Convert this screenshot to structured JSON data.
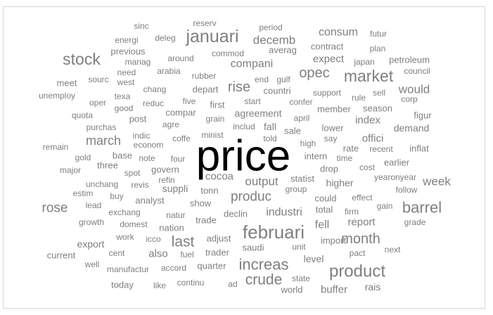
{
  "chart_data": {
    "type": "wordcloud",
    "colors": {
      "dominant": "#000000",
      "default": "#7f7f7f"
    },
    "words": [
      {
        "text": "price",
        "freq": 100
      },
      {
        "text": "februari",
        "freq": 26
      },
      {
        "text": "januari",
        "freq": 24
      },
      {
        "text": "product",
        "freq": 24
      },
      {
        "text": "market",
        "freq": 23
      },
      {
        "text": "stock",
        "freq": 23
      },
      {
        "text": "increas",
        "freq": 22
      },
      {
        "text": "barrel",
        "freq": 22
      },
      {
        "text": "last",
        "freq": 21
      },
      {
        "text": "crude",
        "freq": 21
      },
      {
        "text": "rise",
        "freq": 20
      },
      {
        "text": "month",
        "freq": 20
      },
      {
        "text": "opec",
        "freq": 20
      },
      {
        "text": "produc",
        "freq": 19
      },
      {
        "text": "rose",
        "freq": 19
      },
      {
        "text": "march",
        "freq": 18
      },
      {
        "text": "output",
        "freq": 17
      },
      {
        "text": "decemb",
        "freq": 17
      },
      {
        "text": "would",
        "freq": 17
      },
      {
        "text": "week",
        "freq": 17
      },
      {
        "text": "industri",
        "freq": 16
      },
      {
        "text": "compani",
        "freq": 16
      },
      {
        "text": "consum",
        "freq": 16
      },
      {
        "text": "fell",
        "freq": 16
      },
      {
        "text": "report",
        "freq": 15
      },
      {
        "text": "buffer",
        "freq": 15
      },
      {
        "text": "index",
        "freq": 15
      },
      {
        "text": "offici",
        "freq": 15
      },
      {
        "text": "also",
        "freq": 15
      },
      {
        "text": "expect",
        "freq": 15
      },
      {
        "text": "cocoa",
        "freq": 15
      },
      {
        "text": "level",
        "freq": 14
      },
      {
        "text": "rais",
        "freq": 14
      },
      {
        "text": "demand",
        "freq": 14
      },
      {
        "text": "agreement",
        "freq": 14
      },
      {
        "text": "higher",
        "freq": 14
      },
      {
        "text": "export",
        "freq": 14
      },
      {
        "text": "suppli",
        "freq": 14
      },
      {
        "text": "fall",
        "freq": 14
      },
      {
        "text": "analyst",
        "freq": 13
      },
      {
        "text": "lower",
        "freq": 13
      },
      {
        "text": "adjust",
        "freq": 13
      },
      {
        "text": "declin",
        "freq": 13
      },
      {
        "text": "post",
        "freq": 13
      },
      {
        "text": "three",
        "freq": 13
      },
      {
        "text": "rate",
        "freq": 13
      },
      {
        "text": "total",
        "freq": 13
      },
      {
        "text": "trader",
        "freq": 13
      },
      {
        "text": "compar",
        "freq": 13
      },
      {
        "text": "tonn",
        "freq": 13
      },
      {
        "text": "could",
        "freq": 13
      },
      {
        "text": "govern",
        "freq": 13
      },
      {
        "text": "trade",
        "freq": 13
      },
      {
        "text": "countri",
        "freq": 13
      },
      {
        "text": "contract",
        "freq": 13
      },
      {
        "text": "earlier",
        "freq": 13
      },
      {
        "text": "meet",
        "freq": 13
      },
      {
        "text": "current",
        "freq": 13
      },
      {
        "text": "world",
        "freq": 13
      },
      {
        "text": "statist",
        "freq": 13
      },
      {
        "text": "today",
        "freq": 13
      },
      {
        "text": "import",
        "freq": 13
      },
      {
        "text": "quarter",
        "freq": 13
      },
      {
        "text": "member",
        "freq": 13
      },
      {
        "text": "figur",
        "freq": 13
      },
      {
        "text": "first",
        "freq": 13
      },
      {
        "text": "averag",
        "freq": 13
      },
      {
        "text": "intern",
        "freq": 13
      },
      {
        "text": "saudi",
        "freq": 13
      },
      {
        "text": "petroleum",
        "freq": 13
      },
      {
        "text": "drop",
        "freq": 13
      },
      {
        "text": "nation",
        "freq": 13
      },
      {
        "text": "sale",
        "freq": 13
      },
      {
        "text": "show",
        "freq": 13
      },
      {
        "text": "previous",
        "freq": 13
      },
      {
        "text": "base",
        "freq": 13
      },
      {
        "text": "inflat",
        "freq": 13
      },
      {
        "text": "depart",
        "freq": 13
      },
      {
        "text": "season",
        "freq": 13
      },
      {
        "text": "unit",
        "freq": 12
      },
      {
        "text": "futur",
        "freq": 12
      },
      {
        "text": "rubber",
        "freq": 12
      },
      {
        "text": "april",
        "freq": 12
      },
      {
        "text": "effect",
        "freq": 12
      },
      {
        "text": "pact",
        "freq": 12
      },
      {
        "text": "energi",
        "freq": 12
      },
      {
        "text": "continu",
        "freq": 12
      },
      {
        "text": "cent",
        "freq": 12
      },
      {
        "text": "growth",
        "freq": 12
      },
      {
        "text": "around",
        "freq": 12
      },
      {
        "text": "chang",
        "freq": 12
      },
      {
        "text": "good",
        "freq": 12
      },
      {
        "text": "next",
        "freq": 12
      },
      {
        "text": "sell",
        "freq": 12
      },
      {
        "text": "ad",
        "freq": 12
      },
      {
        "text": "deleg",
        "freq": 12
      },
      {
        "text": "arabia",
        "freq": 12
      },
      {
        "text": "council",
        "freq": 12
      },
      {
        "text": "state",
        "freq": 12
      },
      {
        "text": "need",
        "freq": 12
      },
      {
        "text": "group",
        "freq": 12
      },
      {
        "text": "say",
        "freq": 12
      },
      {
        "text": "grade",
        "freq": 12
      },
      {
        "text": "yearonyear",
        "freq": 12
      },
      {
        "text": "follow",
        "freq": 12
      },
      {
        "text": "purchas",
        "freq": 12
      },
      {
        "text": "texa",
        "freq": 12
      },
      {
        "text": "unemploy",
        "freq": 12
      },
      {
        "text": "quota",
        "freq": 12
      },
      {
        "text": "oper",
        "freq": 12
      },
      {
        "text": "remain",
        "freq": 12
      },
      {
        "text": "major",
        "freq": 12
      },
      {
        "text": "gold",
        "freq": 12
      },
      {
        "text": "estim",
        "freq": 12
      },
      {
        "text": "lead",
        "freq": 12
      },
      {
        "text": "work",
        "freq": 12
      },
      {
        "text": "exchang",
        "freq": 12
      },
      {
        "text": "domest",
        "freq": 12
      },
      {
        "text": "natur",
        "freq": 12
      },
      {
        "text": "manufactur",
        "freq": 12
      },
      {
        "text": "accord",
        "freq": 12
      },
      {
        "text": "like",
        "freq": 12
      },
      {
        "text": "well",
        "freq": 12
      },
      {
        "text": "fuel",
        "freq": 12
      },
      {
        "text": "icco",
        "freq": 12
      },
      {
        "text": "unchang",
        "freq": 12
      },
      {
        "text": "buy",
        "freq": 12
      },
      {
        "text": "revis",
        "freq": 12
      },
      {
        "text": "spot",
        "freq": 12
      },
      {
        "text": "refin",
        "freq": 12
      },
      {
        "text": "four",
        "freq": 12
      },
      {
        "text": "note",
        "freq": 12
      },
      {
        "text": "econom",
        "freq": 12
      },
      {
        "text": "indic",
        "freq": 12
      },
      {
        "text": "coffe",
        "freq": 12
      },
      {
        "text": "minist",
        "freq": 12
      },
      {
        "text": "agre",
        "freq": 12
      },
      {
        "text": "five",
        "freq": 12
      },
      {
        "text": "reduc",
        "freq": 12
      },
      {
        "text": "grain",
        "freq": 12
      },
      {
        "text": "includ",
        "freq": 12
      },
      {
        "text": "told",
        "freq": 12
      },
      {
        "text": "high",
        "freq": 12
      },
      {
        "text": "time",
        "freq": 12
      },
      {
        "text": "recent",
        "freq": 12
      },
      {
        "text": "cost",
        "freq": 12
      },
      {
        "text": "gain",
        "freq": 12
      },
      {
        "text": "firm",
        "freq": 12
      },
      {
        "text": "start",
        "freq": 12
      },
      {
        "text": "confer",
        "freq": 12
      },
      {
        "text": "support",
        "freq": 12
      },
      {
        "text": "rule",
        "freq": 12
      },
      {
        "text": "corp",
        "freq": 12
      },
      {
        "text": "japan",
        "freq": 12
      },
      {
        "text": "plan",
        "freq": 12
      },
      {
        "text": "gulf",
        "freq": 12
      },
      {
        "text": "end",
        "freq": 12
      },
      {
        "text": "west",
        "freq": 12
      },
      {
        "text": "sourc",
        "freq": 12
      },
      {
        "text": "manag",
        "freq": 12
      },
      {
        "text": "commod",
        "freq": 12
      },
      {
        "text": "sinc",
        "freq": 12
      },
      {
        "text": "reserv",
        "freq": 12
      },
      {
        "text": "period",
        "freq": 12
      }
    ]
  }
}
